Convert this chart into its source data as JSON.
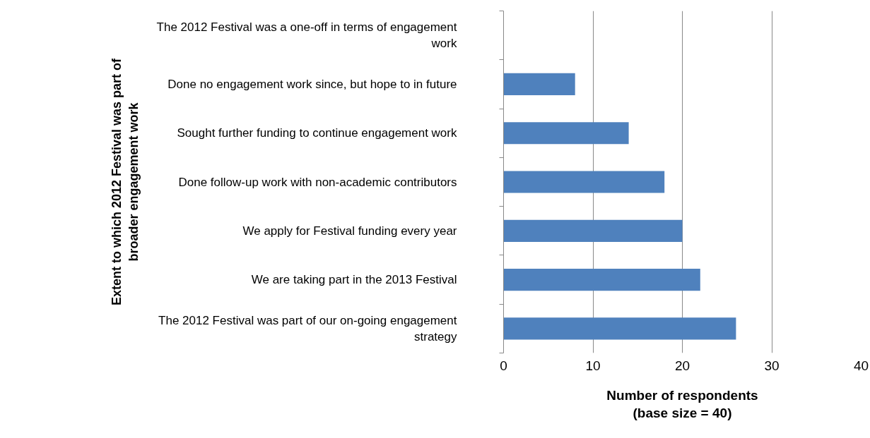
{
  "chart_data": {
    "type": "bar",
    "orientation": "horizontal",
    "categories": [
      "The 2012 Festival was a one-off in terms of engagement work",
      "Done no engagement work since, but hope to in future",
      "Sought further funding to continue engagement work",
      "Done follow-up work with non-academic contributors",
      "We apply for Festival funding every year",
      "We are taking part in the 2013 Festival",
      "The 2012 Festival was part of our on-going engagement strategy"
    ],
    "values": [
      0,
      8,
      14,
      18,
      20,
      22,
      26
    ],
    "color": "#4f81bd",
    "xlim": [
      0,
      40
    ],
    "xticks": [
      0,
      10,
      20,
      30,
      40
    ],
    "xlabel": "Number of respondents\n(base size = 40)",
    "ylabel": "Extent to which 2012 Festival was part of\nbroader engagement work",
    "grid": "x"
  }
}
